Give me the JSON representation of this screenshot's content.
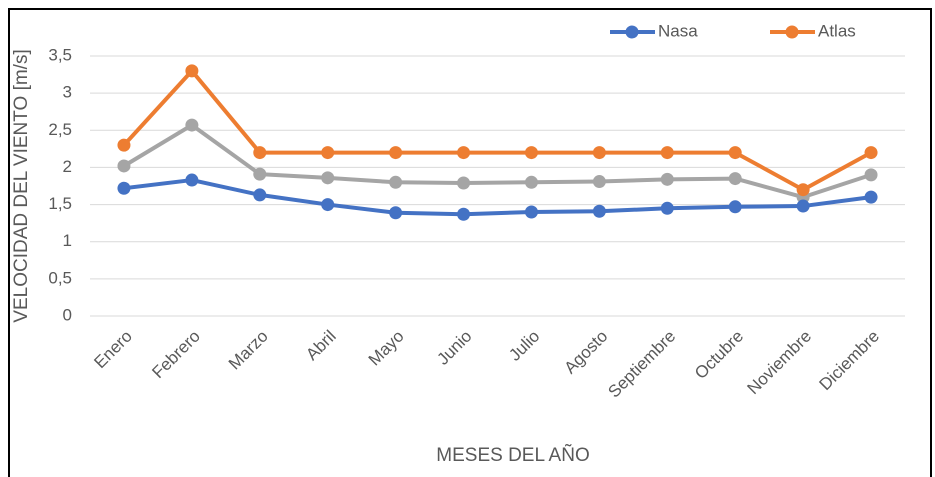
{
  "chart_data": {
    "type": "line",
    "categories": [
      "Enero",
      "Febrero",
      "Marzo",
      "Abril",
      "Mayo",
      "Junio",
      "Julio",
      "Agosto",
      "Septiembre",
      "Octubre",
      "Noviembre",
      "Diciembre"
    ],
    "series": [
      {
        "color": "#a5a5a5",
        "values": [
          2.02,
          2.57,
          1.91,
          1.86,
          1.8,
          1.79,
          1.8,
          1.81,
          1.84,
          1.85,
          1.6,
          1.9
        ]
      },
      {
        "name": "Atlas",
        "color": "#ed7d31",
        "values": [
          2.3,
          3.3,
          2.2,
          2.2,
          2.2,
          2.2,
          2.2,
          2.2,
          2.2,
          2.2,
          1.7,
          2.2
        ]
      },
      {
        "name": "Nasa",
        "color": "#4472c4",
        "values": [
          1.72,
          1.83,
          1.63,
          1.5,
          1.39,
          1.37,
          1.4,
          1.41,
          1.45,
          1.47,
          1.48,
          1.6
        ]
      }
    ],
    "legend_order": [
      "Nasa",
      "Atlas"
    ],
    "ylim": [
      0,
      3.5
    ],
    "yticks": [
      0,
      {
        "value": 0.5,
        "label": "0,5"
      },
      1,
      {
        "value": 1.5,
        "label": "1,5"
      },
      2,
      {
        "value": 2.5,
        "label": "2,5"
      },
      3,
      {
        "value": 3.5,
        "label": "3,5"
      }
    ],
    "grid": true,
    "legend": "top-right",
    "x_label": "MESES DEL AÑO",
    "y_label": "VELOCIDAD DEL VIENTO [m/s]"
  }
}
